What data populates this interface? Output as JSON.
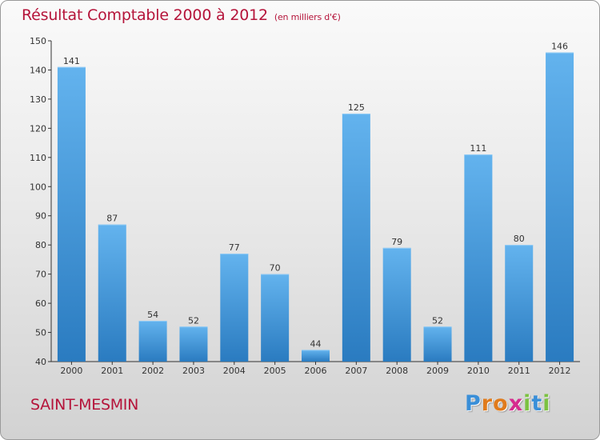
{
  "title": "Résultat Comptable 2000 à 2012",
  "subtitle": "(en milliers d'€)",
  "commune": "SAINT-MESMIN",
  "logo": {
    "letters": [
      "P",
      "r",
      "o",
      "x",
      "i",
      "t",
      "i"
    ],
    "colors": [
      "#3a8fd8",
      "#e07b1c",
      "#e07b1c",
      "#d62b8e",
      "#7cc242",
      "#3a8fd8",
      "#7cc242"
    ]
  },
  "colors": {
    "bar_light": "#63b3ee",
    "bar_dark": "#2a7bc0",
    "title": "#b5143a"
  },
  "chart_data": {
    "type": "bar",
    "categories": [
      "2000",
      "2001",
      "2002",
      "2003",
      "2004",
      "2005",
      "2006",
      "2007",
      "2008",
      "2009",
      "2010",
      "2011",
      "2012"
    ],
    "values": [
      141,
      87,
      54,
      52,
      77,
      70,
      44,
      125,
      79,
      52,
      111,
      80,
      146
    ],
    "ylim": [
      40,
      150
    ],
    "yticks": [
      40,
      50,
      60,
      70,
      80,
      90,
      100,
      110,
      120,
      130,
      140,
      150
    ],
    "grid": false,
    "data_labels": true
  }
}
